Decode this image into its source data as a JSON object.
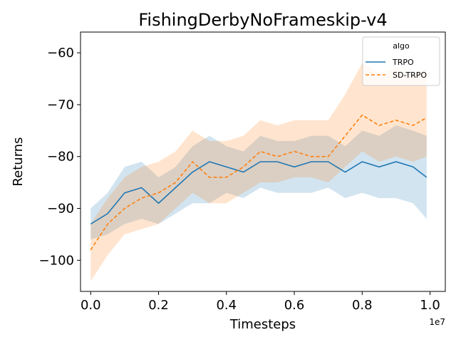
{
  "chart_data": {
    "type": "line",
    "title": "FishingDerbyNoFrameskip-v4",
    "xlabel": "Timesteps",
    "ylabel": "Returns",
    "x_offset_label": "1e7",
    "xlim": [
      -0.03,
      1.045
    ],
    "ylim": [
      -106,
      -56
    ],
    "xticks": [
      0.0,
      0.2,
      0.4,
      0.6,
      0.8,
      1.0
    ],
    "xtick_labels": [
      "0.0",
      "0.2",
      "0.4",
      "0.6",
      "0.8",
      "1.0"
    ],
    "yticks": [
      -100,
      -90,
      -80,
      -70,
      -60
    ],
    "ytick_labels": [
      "−100",
      "−90",
      "−80",
      "−70",
      "−60"
    ],
    "grid": false,
    "legend": {
      "title": "algo",
      "placement": "top-right"
    },
    "x": [
      0.0,
      0.05,
      0.1,
      0.15,
      0.2,
      0.25,
      0.3,
      0.35,
      0.4,
      0.45,
      0.5,
      0.55,
      0.6,
      0.65,
      0.7,
      0.75,
      0.8,
      0.85,
      0.9,
      0.95,
      0.99
    ],
    "series": [
      {
        "name": "TRPO",
        "color": "#1f77b4",
        "dash": "solid",
        "values": [
          -93,
          -91,
          -87,
          -86,
          -89,
          -86,
          -83,
          -81,
          -82,
          -83,
          -81,
          -81,
          -82,
          -81,
          -81,
          -83,
          -81,
          -82,
          -81,
          -82,
          -84
        ],
        "lower": [
          -96,
          -95,
          -93,
          -92,
          -93,
          -91,
          -89,
          -89,
          -87,
          -88,
          -86,
          -87,
          -87,
          -87,
          -86,
          -88,
          -87,
          -88,
          -88,
          -89,
          -92
        ],
        "upper": [
          -90,
          -87,
          -82,
          -81,
          -84,
          -82,
          -78,
          -76,
          -78,
          -79,
          -76,
          -77,
          -77,
          -76,
          -76,
          -78,
          -75,
          -76,
          -74,
          -75,
          -76
        ]
      },
      {
        "name": "SD-TRPO",
        "color": "#ff7f0e",
        "dash": "dashed",
        "values": [
          -98,
          -93,
          -90,
          -88,
          -87,
          -85,
          -81,
          -84,
          -84,
          -82,
          -79,
          -80,
          -79,
          -80,
          -80,
          -76,
          -72,
          -74,
          -73,
          -74,
          -72.5
        ],
        "lower": [
          -104,
          -99,
          -95,
          -94,
          -93,
          -90,
          -87,
          -89,
          -89,
          -87,
          -85,
          -85,
          -84,
          -84,
          -85,
          -82,
          -79,
          -81,
          -80,
          -81,
          -80
        ],
        "upper": [
          -93,
          -88,
          -84,
          -82,
          -81,
          -79,
          -75,
          -77,
          -77,
          -76,
          -73,
          -74,
          -73,
          -73,
          -73,
          -68,
          -62,
          -64,
          -63,
          -64,
          -63
        ]
      }
    ]
  }
}
